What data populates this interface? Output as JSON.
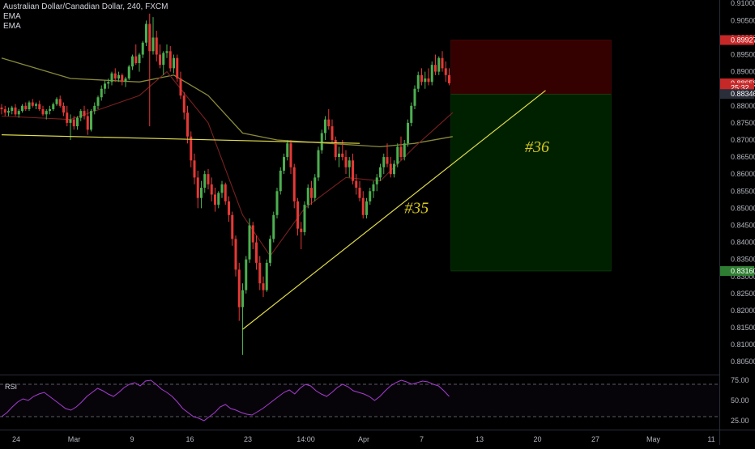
{
  "header": {
    "symbol_line": "Australian Dollar/Canadian Dollar, 240, FXCM",
    "indicators": [
      "EMA",
      "EMA"
    ]
  },
  "rsi_panel": {
    "label": "RSI"
  },
  "chart_data": {
    "type": "candlestick",
    "symbol": "AUDCAD",
    "interval": "240",
    "source": "FXCM",
    "ylim": [
      0.8015,
      0.911
    ],
    "price_axis_ticks": [
      "0.91000",
      "0.90500",
      "0.90000",
      "0.89500",
      "0.89000",
      "0.88500",
      "0.88000",
      "0.87500",
      "0.87000",
      "0.86500",
      "0.86000",
      "0.85500",
      "0.85000",
      "0.84500",
      "0.84000",
      "0.83500",
      "0.83000",
      "0.82500",
      "0.82000",
      "0.81500",
      "0.81000",
      "0.80500"
    ],
    "price_axis_tick_values": [
      0.91,
      0.905,
      0.9,
      0.895,
      0.89,
      0.885,
      0.88,
      0.875,
      0.87,
      0.865,
      0.86,
      0.855,
      0.85,
      0.845,
      0.84,
      0.835,
      0.83,
      0.825,
      0.82,
      0.815,
      0.81,
      0.805
    ],
    "time_axis_ticks": [
      "24",
      "Mar",
      "9",
      "16",
      "23",
      "14:00",
      "Apr",
      "7",
      "13",
      "20",
      "27",
      "May",
      "11"
    ],
    "price_tags": [
      {
        "label": "0.89927",
        "value": 0.89927,
        "color": "#c62828"
      },
      {
        "label": "0.88658",
        "value": 0.88658,
        "color": "#c62828"
      },
      {
        "label": "25:32",
        "value": 0.8853,
        "color": "#c62828"
      },
      {
        "label": "0.88346",
        "value": 0.88346,
        "color": "#2a2e39"
      },
      {
        "label": "0.83160",
        "value": 0.8316,
        "color": "#2e7d32"
      }
    ],
    "candles": [
      [
        0.8795,
        0.8805,
        0.8775,
        0.879
      ],
      [
        0.879,
        0.88,
        0.877,
        0.878
      ],
      [
        0.878,
        0.8795,
        0.877,
        0.8785
      ],
      [
        0.8785,
        0.88,
        0.8775,
        0.8795
      ],
      [
        0.8795,
        0.8805,
        0.877,
        0.8775
      ],
      [
        0.8775,
        0.879,
        0.8765,
        0.8785
      ],
      [
        0.8785,
        0.8805,
        0.878,
        0.88
      ],
      [
        0.88,
        0.881,
        0.8785,
        0.879
      ],
      [
        0.879,
        0.8815,
        0.8785,
        0.881
      ],
      [
        0.881,
        0.882,
        0.8795,
        0.88
      ],
      [
        0.88,
        0.881,
        0.879,
        0.8805
      ],
      [
        0.8805,
        0.8815,
        0.8785,
        0.879
      ],
      [
        0.879,
        0.88,
        0.877,
        0.8775
      ],
      [
        0.8775,
        0.879,
        0.876,
        0.8785
      ],
      [
        0.8785,
        0.88,
        0.8775,
        0.879
      ],
      [
        0.879,
        0.881,
        0.8785,
        0.8805
      ],
      [
        0.8805,
        0.8825,
        0.88,
        0.882
      ],
      [
        0.882,
        0.883,
        0.8795,
        0.88
      ],
      [
        0.88,
        0.881,
        0.877,
        0.878
      ],
      [
        0.878,
        0.88,
        0.874,
        0.875
      ],
      [
        0.875,
        0.8775,
        0.87,
        0.876
      ],
      [
        0.876,
        0.877,
        0.873,
        0.874
      ],
      [
        0.874,
        0.877,
        0.873,
        0.8765
      ],
      [
        0.8765,
        0.879,
        0.8755,
        0.8785
      ],
      [
        0.8785,
        0.88,
        0.876,
        0.877
      ],
      [
        0.877,
        0.879,
        0.8715,
        0.873
      ],
      [
        0.873,
        0.879,
        0.8725,
        0.8785
      ],
      [
        0.8785,
        0.881,
        0.8775,
        0.88
      ],
      [
        0.88,
        0.883,
        0.879,
        0.8825
      ],
      [
        0.8825,
        0.886,
        0.8815,
        0.885
      ],
      [
        0.885,
        0.8875,
        0.8835,
        0.8865
      ],
      [
        0.8865,
        0.888,
        0.885,
        0.887
      ],
      [
        0.887,
        0.89,
        0.886,
        0.8895
      ],
      [
        0.8895,
        0.891,
        0.887,
        0.888
      ],
      [
        0.888,
        0.89,
        0.887,
        0.889
      ],
      [
        0.889,
        0.8895,
        0.886,
        0.887
      ],
      [
        0.887,
        0.8885,
        0.8855,
        0.888
      ],
      [
        0.888,
        0.892,
        0.8875,
        0.8915
      ],
      [
        0.8915,
        0.895,
        0.8905,
        0.8945
      ],
      [
        0.8945,
        0.898,
        0.892,
        0.8925
      ],
      [
        0.8925,
        0.8955,
        0.89,
        0.895
      ],
      [
        0.895,
        0.899,
        0.894,
        0.8985
      ],
      [
        0.8985,
        0.905,
        0.8975,
        0.904
      ],
      [
        0.904,
        0.907,
        0.874,
        0.896
      ],
      [
        0.896,
        0.906,
        0.895,
        0.9
      ],
      [
        0.9,
        0.902,
        0.893,
        0.895
      ],
      [
        0.895,
        0.898,
        0.891,
        0.892
      ],
      [
        0.892,
        0.896,
        0.889,
        0.8955
      ],
      [
        0.8955,
        0.898,
        0.894,
        0.896
      ],
      [
        0.896,
        0.8975,
        0.89,
        0.891
      ],
      [
        0.891,
        0.895,
        0.8895,
        0.894
      ],
      [
        0.894,
        0.895,
        0.887,
        0.888
      ],
      [
        0.888,
        0.89,
        0.882,
        0.883
      ],
      [
        0.883,
        0.884,
        0.876,
        0.878
      ],
      [
        0.878,
        0.88,
        0.869,
        0.871
      ],
      [
        0.871,
        0.8725,
        0.862,
        0.864
      ],
      [
        0.864,
        0.866,
        0.857,
        0.859
      ],
      [
        0.859,
        0.861,
        0.85,
        0.853
      ],
      [
        0.853,
        0.858,
        0.85,
        0.856
      ],
      [
        0.856,
        0.861,
        0.8545,
        0.86
      ],
      [
        0.86,
        0.8615,
        0.8555,
        0.857
      ],
      [
        0.857,
        0.859,
        0.852,
        0.854
      ],
      [
        0.854,
        0.856,
        0.849,
        0.851
      ],
      [
        0.851,
        0.855,
        0.85,
        0.8545
      ],
      [
        0.8545,
        0.858,
        0.853,
        0.857
      ],
      [
        0.857,
        0.8575,
        0.851,
        0.852
      ],
      [
        0.852,
        0.8535,
        0.846,
        0.848
      ],
      [
        0.848,
        0.849,
        0.839,
        0.841
      ],
      [
        0.841,
        0.842,
        0.83,
        0.832
      ],
      [
        0.832,
        0.834,
        0.817,
        0.821
      ],
      [
        0.821,
        0.828,
        0.807,
        0.826
      ],
      [
        0.826,
        0.836,
        0.825,
        0.835
      ],
      [
        0.835,
        0.847,
        0.834,
        0.845
      ],
      [
        0.845,
        0.846,
        0.838,
        0.84
      ],
      [
        0.84,
        0.842,
        0.832,
        0.834
      ],
      [
        0.834,
        0.836,
        0.826,
        0.828
      ],
      [
        0.828,
        0.83,
        0.824,
        0.826
      ],
      [
        0.826,
        0.835,
        0.8255,
        0.834
      ],
      [
        0.834,
        0.842,
        0.833,
        0.841
      ],
      [
        0.841,
        0.849,
        0.84,
        0.848
      ],
      [
        0.848,
        0.856,
        0.847,
        0.855
      ],
      [
        0.855,
        0.862,
        0.854,
        0.861
      ],
      [
        0.861,
        0.866,
        0.86,
        0.865
      ],
      [
        0.865,
        0.87,
        0.864,
        0.869
      ],
      [
        0.869,
        0.87,
        0.86,
        0.862
      ],
      [
        0.862,
        0.863,
        0.85,
        0.852
      ],
      [
        0.852,
        0.853,
        0.842,
        0.844
      ],
      [
        0.844,
        0.846,
        0.838,
        0.843
      ],
      [
        0.843,
        0.852,
        0.842,
        0.851
      ],
      [
        0.851,
        0.857,
        0.85,
        0.856
      ],
      [
        0.856,
        0.858,
        0.851,
        0.853
      ],
      [
        0.853,
        0.86,
        0.852,
        0.859
      ],
      [
        0.859,
        0.868,
        0.858,
        0.867
      ],
      [
        0.867,
        0.873,
        0.866,
        0.872
      ],
      [
        0.872,
        0.877,
        0.87,
        0.876
      ],
      [
        0.876,
        0.879,
        0.873,
        0.874
      ],
      [
        0.874,
        0.876,
        0.869,
        0.87
      ],
      [
        0.87,
        0.871,
        0.864,
        0.865
      ],
      [
        0.865,
        0.868,
        0.862,
        0.866
      ],
      [
        0.866,
        0.87,
        0.864,
        0.865
      ],
      [
        0.865,
        0.867,
        0.86,
        0.862
      ],
      [
        0.862,
        0.865,
        0.859,
        0.864
      ],
      [
        0.864,
        0.866,
        0.857,
        0.858
      ],
      [
        0.858,
        0.86,
        0.854,
        0.856
      ],
      [
        0.856,
        0.858,
        0.852,
        0.853
      ],
      [
        0.853,
        0.855,
        0.847,
        0.848
      ],
      [
        0.848,
        0.853,
        0.847,
        0.852
      ],
      [
        0.852,
        0.856,
        0.851,
        0.855
      ],
      [
        0.855,
        0.858,
        0.853,
        0.857
      ],
      [
        0.857,
        0.86,
        0.855,
        0.859
      ],
      [
        0.859,
        0.863,
        0.858,
        0.862
      ],
      [
        0.862,
        0.866,
        0.86,
        0.865
      ],
      [
        0.865,
        0.869,
        0.862,
        0.863
      ],
      [
        0.863,
        0.865,
        0.859,
        0.86
      ],
      [
        0.86,
        0.864,
        0.859,
        0.863
      ],
      [
        0.863,
        0.869,
        0.862,
        0.868
      ],
      [
        0.868,
        0.871,
        0.864,
        0.865
      ],
      [
        0.865,
        0.87,
        0.864,
        0.869
      ],
      [
        0.869,
        0.876,
        0.868,
        0.875
      ],
      [
        0.875,
        0.881,
        0.874,
        0.88
      ],
      [
        0.88,
        0.886,
        0.879,
        0.885
      ],
      [
        0.885,
        0.89,
        0.884,
        0.889
      ],
      [
        0.889,
        0.891,
        0.886,
        0.887
      ],
      [
        0.887,
        0.89,
        0.885,
        0.888
      ],
      [
        0.888,
        0.891,
        0.886,
        0.887
      ],
      [
        0.887,
        0.893,
        0.886,
        0.892
      ],
      [
        0.892,
        0.895,
        0.889,
        0.89
      ],
      [
        0.89,
        0.8945,
        0.889,
        0.894
      ],
      [
        0.894,
        0.896,
        0.89,
        0.891
      ],
      [
        0.891,
        0.893,
        0.887,
        0.889
      ],
      [
        0.889,
        0.891,
        0.886,
        0.8866
      ]
    ],
    "ema_fast": [
      [
        0,
        0.877
      ],
      [
        20,
        0.876
      ],
      [
        40,
        0.883
      ],
      [
        48,
        0.89
      ],
      [
        60,
        0.875
      ],
      [
        70,
        0.848
      ],
      [
        78,
        0.836
      ],
      [
        88,
        0.85
      ],
      [
        100,
        0.859
      ],
      [
        110,
        0.858
      ],
      [
        120,
        0.868
      ],
      [
        131,
        0.878
      ]
    ],
    "ema_slow": [
      [
        0,
        0.894
      ],
      [
        20,
        0.888
      ],
      [
        40,
        0.887
      ],
      [
        50,
        0.889
      ],
      [
        60,
        0.883
      ],
      [
        70,
        0.872
      ],
      [
        80,
        0.87
      ],
      [
        95,
        0.869
      ],
      [
        110,
        0.868
      ],
      [
        120,
        0.869
      ],
      [
        131,
        0.871
      ]
    ],
    "trendlines": [
      {
        "from": [
          0,
          0.8715
        ],
        "to": [
          104,
          0.869
        ]
      },
      {
        "from": [
          70,
          0.8145
        ],
        "to": [
          158,
          0.8845
        ]
      }
    ],
    "position": {
      "entry": 0.88346,
      "stop": 0.89927,
      "target": 0.8316,
      "start_index": 131,
      "end_index": 177
    },
    "annotations": [
      {
        "text": "#35",
        "index": 117,
        "price": 0.8485
      },
      {
        "text": "#36",
        "index": 152,
        "price": 0.8665
      }
    ],
    "rsi": {
      "levels": [
        70,
        30
      ],
      "ticks": [
        "75.00",
        "50.00",
        "25.00"
      ],
      "tick_values": [
        75,
        50,
        25
      ],
      "values": [
        30,
        35,
        42,
        48,
        52,
        50,
        55,
        58,
        60,
        55,
        50,
        45,
        40,
        38,
        42,
        48,
        55,
        60,
        65,
        62,
        58,
        55,
        60,
        66,
        70,
        72,
        68,
        74,
        75,
        70,
        64,
        60,
        55,
        48,
        40,
        35,
        30,
        28,
        25,
        30,
        35,
        42,
        45,
        40,
        38,
        35,
        33,
        32,
        36,
        40,
        45,
        50,
        55,
        60,
        63,
        58,
        65,
        70,
        68,
        62,
        58,
        55,
        60,
        66,
        70,
        67,
        62,
        60,
        58,
        55,
        50,
        55,
        62,
        68,
        72,
        75,
        73,
        70,
        72,
        74,
        73,
        70,
        68,
        62,
        55
      ]
    }
  }
}
